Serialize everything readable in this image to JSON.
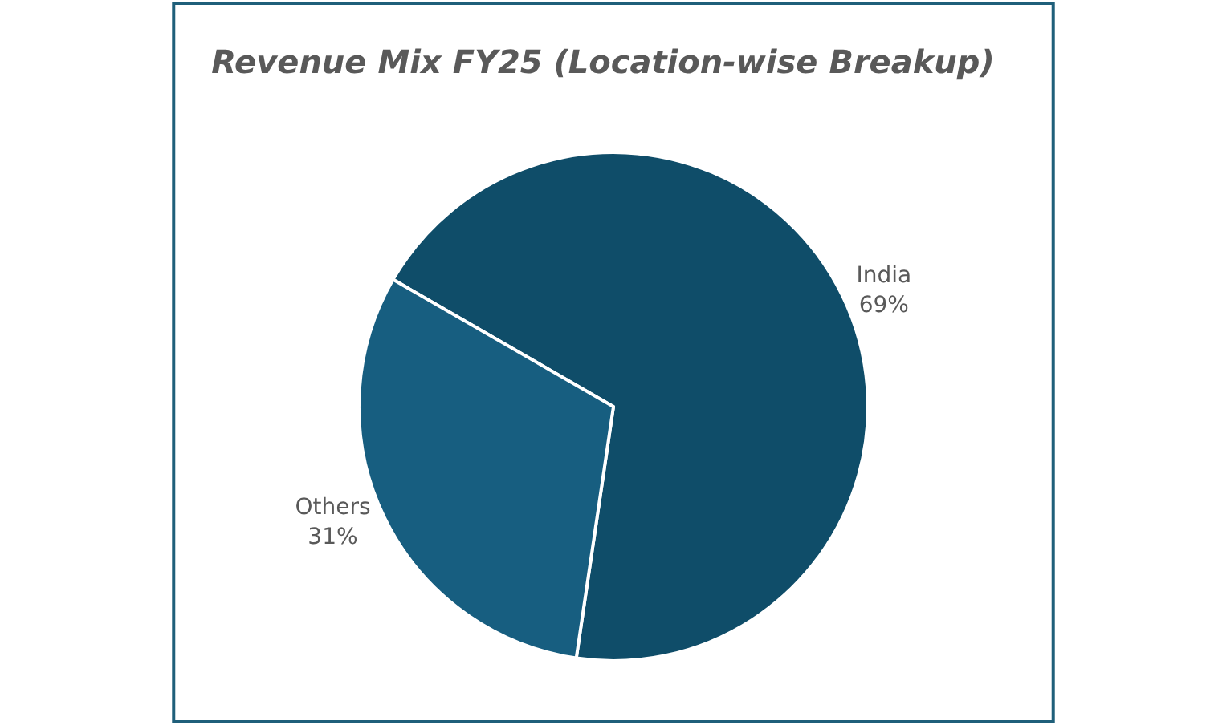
{
  "chart_data": {
    "type": "pie",
    "title": "Revenue Mix FY25 (Location-wise Breakup)",
    "categories": [
      "India",
      "Others"
    ],
    "values": [
      69,
      31
    ],
    "colors": [
      "#0f4d69",
      "#175e80"
    ],
    "value_labels": [
      "69%",
      "31%"
    ],
    "legend": false
  }
}
